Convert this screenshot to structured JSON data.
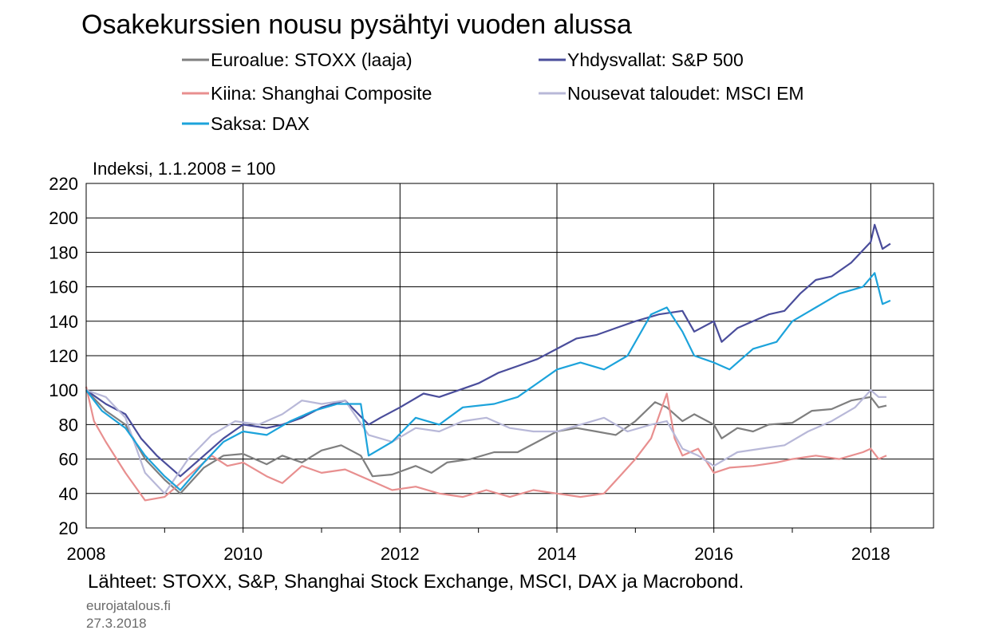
{
  "footer": {
    "source": "Lähteet: STOXX, S&P, Shanghai Stock Exchange, MSCI, DAX ja Macrobond.",
    "site": "eurojatalous.fi",
    "date": "27.3.2018"
  },
  "chart_data": {
    "type": "line",
    "title": "Osakekurssien nousu pysähtyi vuoden alussa",
    "ylabel": "Indeksi, 1.1.2008 = 100",
    "xlabel": "",
    "xlim": [
      2008.0,
      2018.8
    ],
    "ylim": [
      20,
      220
    ],
    "yticks": [
      20,
      40,
      60,
      80,
      100,
      120,
      140,
      160,
      180,
      200,
      220
    ],
    "xtick_labels": [
      "2008",
      "2010",
      "2012",
      "2014",
      "2016",
      "2018"
    ],
    "grid": true,
    "legend_position": "top",
    "series": [
      {
        "name": "Euroalue: STOXX (laaja)",
        "color": "#7f7f7f",
        "x": [
          2008.0,
          2008.25,
          2008.5,
          2008.75,
          2009.0,
          2009.2,
          2009.5,
          2009.75,
          2010.0,
          2010.3,
          2010.5,
          2010.75,
          2011.0,
          2011.25,
          2011.5,
          2011.65,
          2011.9,
          2012.2,
          2012.4,
          2012.6,
          2012.9,
          2013.2,
          2013.5,
          2013.75,
          2014.0,
          2014.25,
          2014.5,
          2014.75,
          2015.0,
          2015.25,
          2015.4,
          2015.6,
          2015.75,
          2016.0,
          2016.1,
          2016.3,
          2016.5,
          2016.7,
          2017.0,
          2017.25,
          2017.5,
          2017.75,
          2018.0,
          2018.1,
          2018.2
        ],
        "values": [
          100,
          88,
          80,
          60,
          48,
          40,
          55,
          62,
          63,
          57,
          62,
          58,
          65,
          68,
          62,
          50,
          51,
          56,
          52,
          58,
          60,
          64,
          64,
          70,
          76,
          78,
          76,
          74,
          82,
          93,
          90,
          82,
          86,
          80,
          72,
          78,
          76,
          80,
          81,
          88,
          89,
          94,
          96,
          90,
          91
        ]
      },
      {
        "name": "Yhdysvallat: S&P 500",
        "color": "#4a4d9b",
        "x": [
          2008.0,
          2008.25,
          2008.5,
          2008.7,
          2008.9,
          2009.2,
          2009.5,
          2009.75,
          2010.0,
          2010.3,
          2010.5,
          2010.75,
          2011.0,
          2011.3,
          2011.6,
          2011.75,
          2012.0,
          2012.3,
          2012.5,
          2012.75,
          2013.0,
          2013.25,
          2013.5,
          2013.75,
          2014.0,
          2014.25,
          2014.5,
          2014.75,
          2015.0,
          2015.3,
          2015.6,
          2015.75,
          2016.0,
          2016.1,
          2016.3,
          2016.5,
          2016.7,
          2016.9,
          2017.1,
          2017.3,
          2017.5,
          2017.75,
          2018.0,
          2018.05,
          2018.15,
          2018.25
        ],
        "values": [
          100,
          92,
          86,
          72,
          62,
          50,
          62,
          72,
          80,
          78,
          80,
          84,
          90,
          94,
          80,
          84,
          90,
          98,
          96,
          100,
          104,
          110,
          114,
          118,
          124,
          130,
          132,
          136,
          140,
          144,
          146,
          134,
          140,
          128,
          136,
          140,
          144,
          146,
          156,
          164,
          166,
          174,
          186,
          196,
          182,
          185
        ]
      },
      {
        "name": "Kiina: Shanghai Composite",
        "color": "#e88f8f",
        "x": [
          2008.0,
          2008.1,
          2008.25,
          2008.5,
          2008.75,
          2009.0,
          2009.3,
          2009.6,
          2009.8,
          2010.0,
          2010.3,
          2010.5,
          2010.75,
          2011.0,
          2011.3,
          2011.6,
          2011.9,
          2012.2,
          2012.5,
          2012.8,
          2013.1,
          2013.4,
          2013.7,
          2014.0,
          2014.3,
          2014.6,
          2014.8,
          2015.0,
          2015.2,
          2015.4,
          2015.5,
          2015.6,
          2015.8,
          2016.0,
          2016.2,
          2016.5,
          2016.8,
          2017.0,
          2017.3,
          2017.6,
          2017.9,
          2018.0,
          2018.1,
          2018.2
        ],
        "values": [
          102,
          82,
          70,
          52,
          36,
          38,
          50,
          62,
          56,
          58,
          50,
          46,
          56,
          52,
          54,
          48,
          42,
          44,
          40,
          38,
          42,
          38,
          42,
          40,
          38,
          40,
          50,
          60,
          72,
          98,
          72,
          62,
          66,
          52,
          55,
          56,
          58,
          60,
          62,
          60,
          64,
          66,
          60,
          62
        ]
      },
      {
        "name": "Nousevat taloudet: MSCI EM",
        "color": "#b8b8d8",
        "x": [
          2008.0,
          2008.25,
          2008.5,
          2008.75,
          2009.0,
          2009.3,
          2009.6,
          2009.9,
          2010.2,
          2010.5,
          2010.75,
          2011.0,
          2011.3,
          2011.6,
          2011.9,
          2012.2,
          2012.5,
          2012.8,
          2013.1,
          2013.4,
          2013.7,
          2014.0,
          2014.3,
          2014.6,
          2014.9,
          2015.2,
          2015.4,
          2015.6,
          2015.8,
          2016.0,
          2016.3,
          2016.6,
          2016.9,
          2017.2,
          2017.5,
          2017.8,
          2018.0,
          2018.1,
          2018.2
        ],
        "values": [
          100,
          96,
          84,
          52,
          40,
          60,
          74,
          82,
          80,
          86,
          94,
          92,
          94,
          74,
          70,
          78,
          76,
          82,
          84,
          78,
          76,
          76,
          80,
          84,
          76,
          80,
          82,
          66,
          62,
          56,
          64,
          66,
          68,
          76,
          82,
          90,
          100,
          96,
          96
        ]
      },
      {
        "name": "Saksa: DAX",
        "color": "#1ca3db",
        "x": [
          2008.0,
          2008.2,
          2008.5,
          2008.75,
          2009.0,
          2009.2,
          2009.5,
          2009.75,
          2010.0,
          2010.3,
          2010.6,
          2010.9,
          2011.2,
          2011.5,
          2011.6,
          2011.9,
          2012.2,
          2012.5,
          2012.8,
          2013.2,
          2013.5,
          2013.75,
          2014.0,
          2014.3,
          2014.6,
          2014.9,
          2015.2,
          2015.4,
          2015.6,
          2015.75,
          2016.0,
          2016.2,
          2016.5,
          2016.8,
          2017.0,
          2017.3,
          2017.6,
          2017.9,
          2018.05,
          2018.15,
          2018.25
        ],
        "values": [
          100,
          88,
          78,
          62,
          50,
          42,
          58,
          70,
          76,
          74,
          82,
          88,
          92,
          92,
          62,
          70,
          84,
          80,
          90,
          92,
          96,
          104,
          112,
          116,
          112,
          120,
          144,
          148,
          134,
          120,
          116,
          112,
          124,
          128,
          140,
          148,
          156,
          160,
          168,
          150,
          152
        ]
      }
    ]
  }
}
